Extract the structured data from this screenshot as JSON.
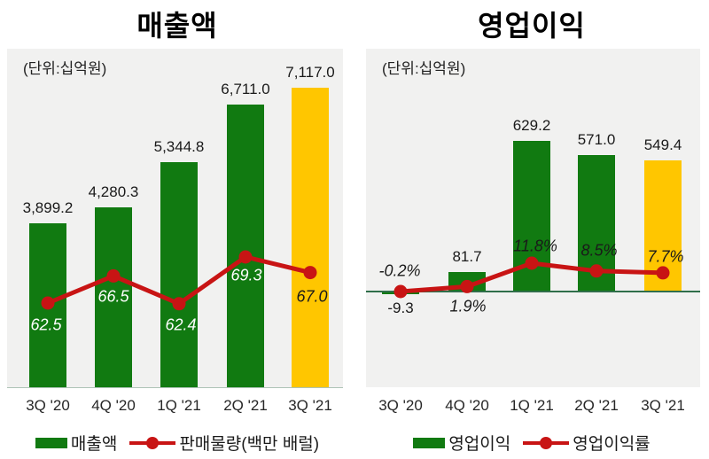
{
  "page": {
    "background": "#ffffff"
  },
  "chart_data": [
    {
      "type": "bar",
      "subtype": "bar-line-combo",
      "title": "매출액",
      "unit_label": "(단위:십억원)",
      "categories": [
        "3Q '20",
        "4Q '20",
        "1Q '21",
        "2Q '21",
        "3Q '21"
      ],
      "bar_series": {
        "name": "매출액",
        "values": [
          3899.2,
          4280.3,
          5344.8,
          6711.0,
          7117.0
        ],
        "labels": [
          "3,899.2",
          "4,280.3",
          "5,344.8",
          "6,711.0",
          "7,117.0"
        ]
      },
      "line_series": {
        "name": "판매물량(백만 배럴)",
        "values": [
          62.5,
          66.5,
          62.4,
          69.3,
          67.0
        ],
        "labels": [
          "62.5",
          "66.5",
          "62.4",
          "69.3",
          "67.0"
        ]
      },
      "colors": {
        "bars": [
          "#117a11",
          "#117a11",
          "#117a11",
          "#117a11",
          "#ffc600"
        ],
        "line": "#c81414",
        "plot_background": "#f1f1f0"
      },
      "legend_position": "bottom",
      "grid": false,
      "axes_visible": false
    },
    {
      "type": "bar",
      "subtype": "bar-line-combo",
      "title": "영업이익",
      "unit_label": "(단위:십억원)",
      "categories": [
        "3Q '20",
        "4Q '20",
        "1Q '21",
        "2Q '21",
        "3Q '21"
      ],
      "bar_series": {
        "name": "영업이익",
        "values": [
          -9.3,
          81.7,
          629.2,
          571.0,
          549.4
        ],
        "labels": [
          "-9.3",
          "81.7",
          "629.2",
          "571.0",
          "549.4"
        ]
      },
      "line_series": {
        "name": "영업이익률",
        "values": [
          -0.2,
          1.9,
          11.8,
          8.5,
          7.7
        ],
        "labels": [
          "-0.2%",
          "1.9%",
          "11.8%",
          "8.5%",
          "7.7%"
        ]
      },
      "colors": {
        "bars": [
          "#117a11",
          "#117a11",
          "#117a11",
          "#117a11",
          "#ffc600"
        ],
        "line": "#c81414",
        "zero_line": "#2f6e4a",
        "plot_background": "#f1f1f0"
      },
      "legend_position": "bottom",
      "grid": false,
      "axes_visible": false
    }
  ]
}
